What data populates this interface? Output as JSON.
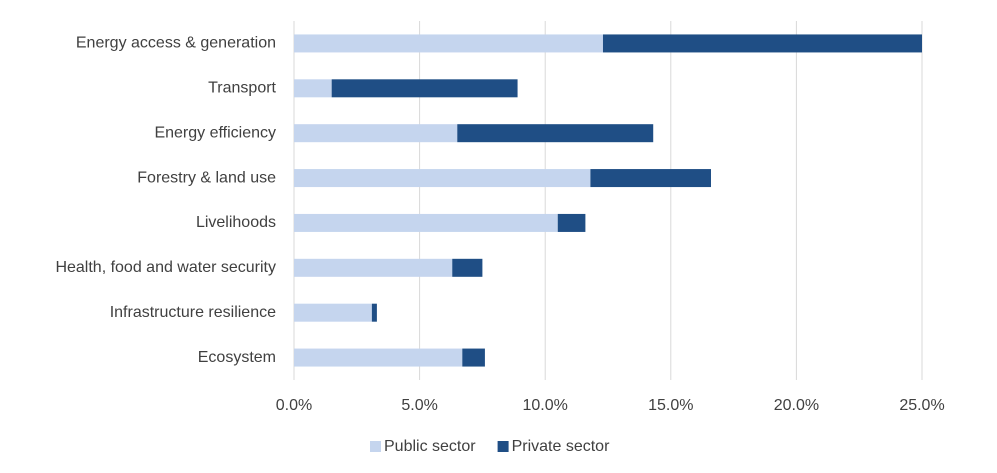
{
  "chart_data": {
    "type": "stacked-barh",
    "categories": [
      "Energy access & generation",
      "Transport",
      "Energy efficiency",
      "Forestry & land use",
      "Livelihoods",
      "Health, food and water security",
      "Infrastructure resilience",
      "Ecosystem"
    ],
    "series": [
      {
        "name": "Public sector",
        "color": "#c5d5ee",
        "values": [
          12.3,
          1.5,
          6.5,
          11.8,
          10.5,
          6.3,
          3.1,
          6.7
        ]
      },
      {
        "name": "Private sector",
        "color": "#1f4e85",
        "values": [
          12.7,
          7.4,
          7.8,
          4.8,
          1.1,
          1.2,
          0.2,
          0.9
        ]
      }
    ],
    "xlim": [
      0,
      25
    ],
    "xticks": [
      {
        "value": 0,
        "label": "0.0%"
      },
      {
        "value": 5,
        "label": "5.0%"
      },
      {
        "value": 10,
        "label": "10.0%"
      },
      {
        "value": 15,
        "label": "15.0%"
      },
      {
        "value": 20,
        "label": "20.0%"
      },
      {
        "value": 25,
        "label": "25.0%"
      }
    ],
    "grid": true,
    "legend": "bottom"
  }
}
